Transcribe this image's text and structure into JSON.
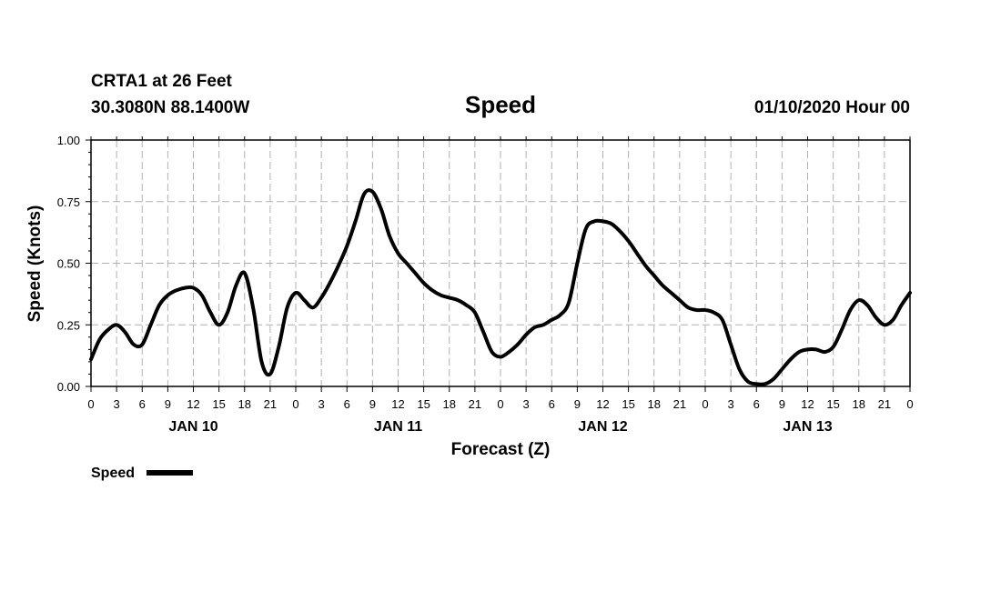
{
  "header": {
    "station": "CRTA1 at 26 Feet",
    "coords": "30.3080N 88.1400W",
    "run_time": "01/10/2020 Hour 00"
  },
  "chart_data": {
    "type": "line",
    "title": "Speed",
    "xlabel": "Forecast (Z)",
    "ylabel": "Speed (Knots)",
    "ylim": [
      0,
      1
    ],
    "xlim_hours": [
      0,
      96
    ],
    "y_ticks": [
      "0.00",
      "0.25",
      "0.50",
      "0.75",
      "1.00"
    ],
    "y_tick_values": [
      0,
      0.25,
      0.5,
      0.75,
      1.0
    ],
    "x_tick_labels": [
      "0",
      "3",
      "6",
      "9",
      "12",
      "15",
      "18",
      "21",
      "0",
      "3",
      "6",
      "9",
      "12",
      "15",
      "18",
      "21",
      "0",
      "3",
      "6",
      "9",
      "12",
      "15",
      "18",
      "21",
      "0",
      "3",
      "6",
      "9",
      "12",
      "15",
      "18",
      "21",
      "0"
    ],
    "day_labels": [
      {
        "label": "JAN 10",
        "hour": 12
      },
      {
        "label": "JAN 11",
        "hour": 36
      },
      {
        "label": "JAN 12",
        "hour": 60
      },
      {
        "label": "JAN 13",
        "hour": 84
      }
    ],
    "grid": true,
    "legend": "bottom-left",
    "series": [
      {
        "name": "Speed",
        "color": "#000000",
        "x": [
          0,
          1,
          2,
          3,
          4,
          5,
          6,
          7,
          8,
          9,
          10,
          11,
          12,
          13,
          14,
          15,
          16,
          17,
          18,
          19,
          20,
          21,
          22,
          23,
          24,
          25,
          26,
          27,
          28,
          29,
          30,
          31,
          32,
          33,
          34,
          35,
          36,
          37,
          38,
          39,
          40,
          41,
          42,
          43,
          44,
          45,
          46,
          47,
          48,
          49,
          50,
          51,
          52,
          53,
          54,
          55,
          56,
          57,
          58,
          59,
          60,
          61,
          62,
          63,
          64,
          65,
          66,
          67,
          68,
          69,
          70,
          71,
          72,
          73,
          74,
          75,
          76,
          77,
          78,
          79,
          80,
          81,
          82,
          83,
          84,
          85,
          86,
          87,
          88,
          89,
          90,
          91,
          92,
          93,
          94,
          95,
          96
        ],
        "values": [
          0.11,
          0.19,
          0.23,
          0.25,
          0.22,
          0.17,
          0.17,
          0.25,
          0.33,
          0.37,
          0.39,
          0.4,
          0.4,
          0.37,
          0.3,
          0.25,
          0.3,
          0.41,
          0.46,
          0.32,
          0.1,
          0.05,
          0.16,
          0.32,
          0.38,
          0.35,
          0.32,
          0.36,
          0.42,
          0.49,
          0.57,
          0.67,
          0.78,
          0.79,
          0.72,
          0.61,
          0.54,
          0.5,
          0.46,
          0.42,
          0.39,
          0.37,
          0.36,
          0.35,
          0.33,
          0.3,
          0.22,
          0.14,
          0.12,
          0.14,
          0.17,
          0.21,
          0.24,
          0.25,
          0.27,
          0.29,
          0.34,
          0.5,
          0.64,
          0.67,
          0.67,
          0.66,
          0.63,
          0.59,
          0.54,
          0.49,
          0.45,
          0.41,
          0.38,
          0.35,
          0.32,
          0.31,
          0.31,
          0.3,
          0.27,
          0.17,
          0.07,
          0.02,
          0.01,
          0.01,
          0.03,
          0.07,
          0.11,
          0.14,
          0.15,
          0.15,
          0.14,
          0.16,
          0.23,
          0.31,
          0.35,
          0.33,
          0.28,
          0.25,
          0.27,
          0.33,
          0.38
        ]
      }
    ]
  },
  "legend_label": "Speed"
}
